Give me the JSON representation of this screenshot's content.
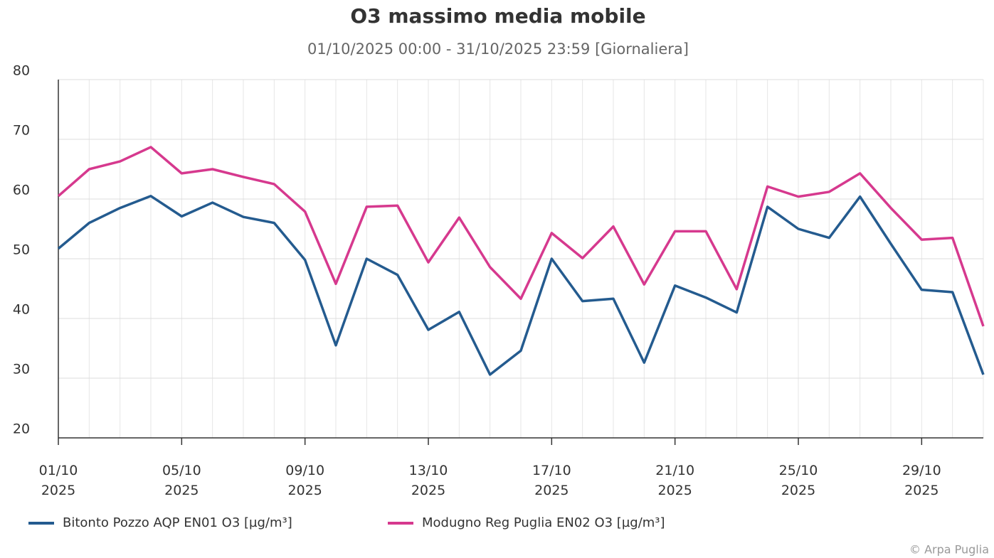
{
  "chart_data": {
    "type": "line",
    "title": "O3 massimo media mobile",
    "subtitle": "01/10/2025 00:00 - 31/10/2025 23:59 [Giornaliera]",
    "credits": "© Arpa Puglia",
    "x": [
      1,
      2,
      3,
      4,
      5,
      6,
      7,
      8,
      9,
      10,
      11,
      12,
      13,
      14,
      15,
      16,
      17,
      18,
      19,
      20,
      21,
      22,
      23,
      24,
      25,
      26,
      27,
      28,
      29,
      30,
      31
    ],
    "xlim": [
      1,
      31
    ],
    "xticks": [
      {
        "value": 1,
        "label": "01/10 2025"
      },
      {
        "value": 5,
        "label": "05/10 2025"
      },
      {
        "value": 9,
        "label": "09/10 2025"
      },
      {
        "value": 13,
        "label": "13/10 2025"
      },
      {
        "value": 17,
        "label": "17/10 2025"
      },
      {
        "value": 21,
        "label": "21/10 2025"
      },
      {
        "value": 25,
        "label": "25/10 2025"
      },
      {
        "value": 29,
        "label": "29/10 2025"
      }
    ],
    "ylim": [
      20,
      80
    ],
    "yticks": [
      20,
      30,
      40,
      50,
      60,
      70,
      80
    ],
    "grid": true,
    "legend": "bottom",
    "series": [
      {
        "name": "Bitonto Pozzo AQP EN01 O3 [µg/m³]",
        "color": "#245b8f",
        "values": [
          51.7,
          56.0,
          58.5,
          60.5,
          57.1,
          59.4,
          57.0,
          56.0,
          49.8,
          35.5,
          50.0,
          47.3,
          38.1,
          41.1,
          30.6,
          34.6,
          50.0,
          42.9,
          43.3,
          32.6,
          45.5,
          43.5,
          41.0,
          58.7,
          55.0,
          53.5,
          60.4,
          52.5,
          44.8,
          44.4,
          30.6
        ]
      },
      {
        "name": "Modugno Reg Puglia EN02 O3 [µg/m³]",
        "color": "#d6398e",
        "values": [
          60.5,
          65.0,
          66.3,
          68.7,
          64.3,
          65.0,
          63.7,
          62.5,
          57.9,
          45.8,
          58.7,
          58.9,
          49.4,
          56.9,
          48.6,
          43.3,
          54.3,
          50.1,
          55.4,
          45.7,
          54.6,
          54.6,
          44.9,
          62.1,
          60.4,
          61.2,
          64.3,
          58.5,
          53.2,
          53.5,
          38.7
        ]
      }
    ]
  }
}
